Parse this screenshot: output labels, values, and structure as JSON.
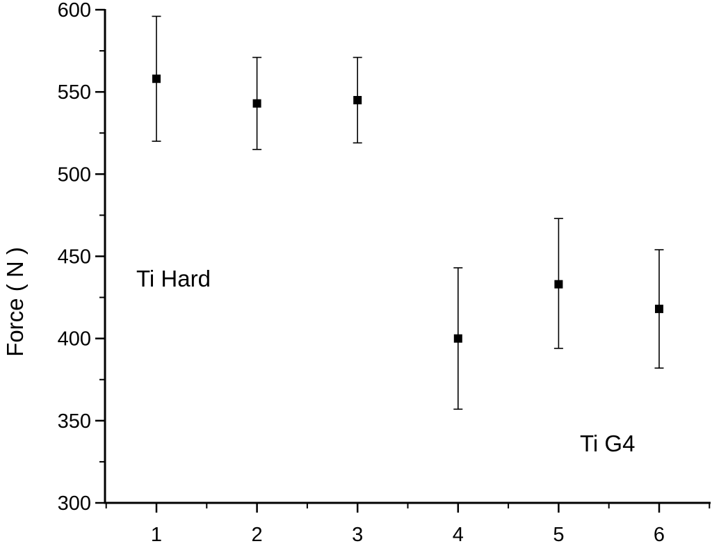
{
  "chart_data": {
    "type": "scatter",
    "title": "",
    "xlabel": "",
    "ylabel": "Force ( N )",
    "xlim": [
      0.5,
      7.0
    ],
    "ylim": [
      300,
      600
    ],
    "x_ticks": [
      "1",
      "2",
      "3",
      "4",
      "5",
      "6"
    ],
    "y_ticks": [
      "300",
      "350",
      "400",
      "450",
      "500",
      "550",
      "600"
    ],
    "grid": false,
    "legend": "none",
    "marker": "square",
    "color": "#000000",
    "points": [
      {
        "x": 1,
        "y": 558,
        "err_low": 520,
        "err_high": 596
      },
      {
        "x": 2,
        "y": 543,
        "err_low": 515,
        "err_high": 571
      },
      {
        "x": 3,
        "y": 545,
        "err_low": 519,
        "err_high": 571
      },
      {
        "x": 4,
        "y": 400,
        "err_low": 357,
        "err_high": 443
      },
      {
        "x": 5,
        "y": 433,
        "err_low": 394,
        "err_high": 473
      },
      {
        "x": 6,
        "y": 418,
        "err_low": 382,
        "err_high": 454
      }
    ],
    "annotations": [
      {
        "text": "Ti Hard",
        "group": "1-3"
      },
      {
        "text": "Ti G4",
        "group": "4-6"
      }
    ]
  }
}
